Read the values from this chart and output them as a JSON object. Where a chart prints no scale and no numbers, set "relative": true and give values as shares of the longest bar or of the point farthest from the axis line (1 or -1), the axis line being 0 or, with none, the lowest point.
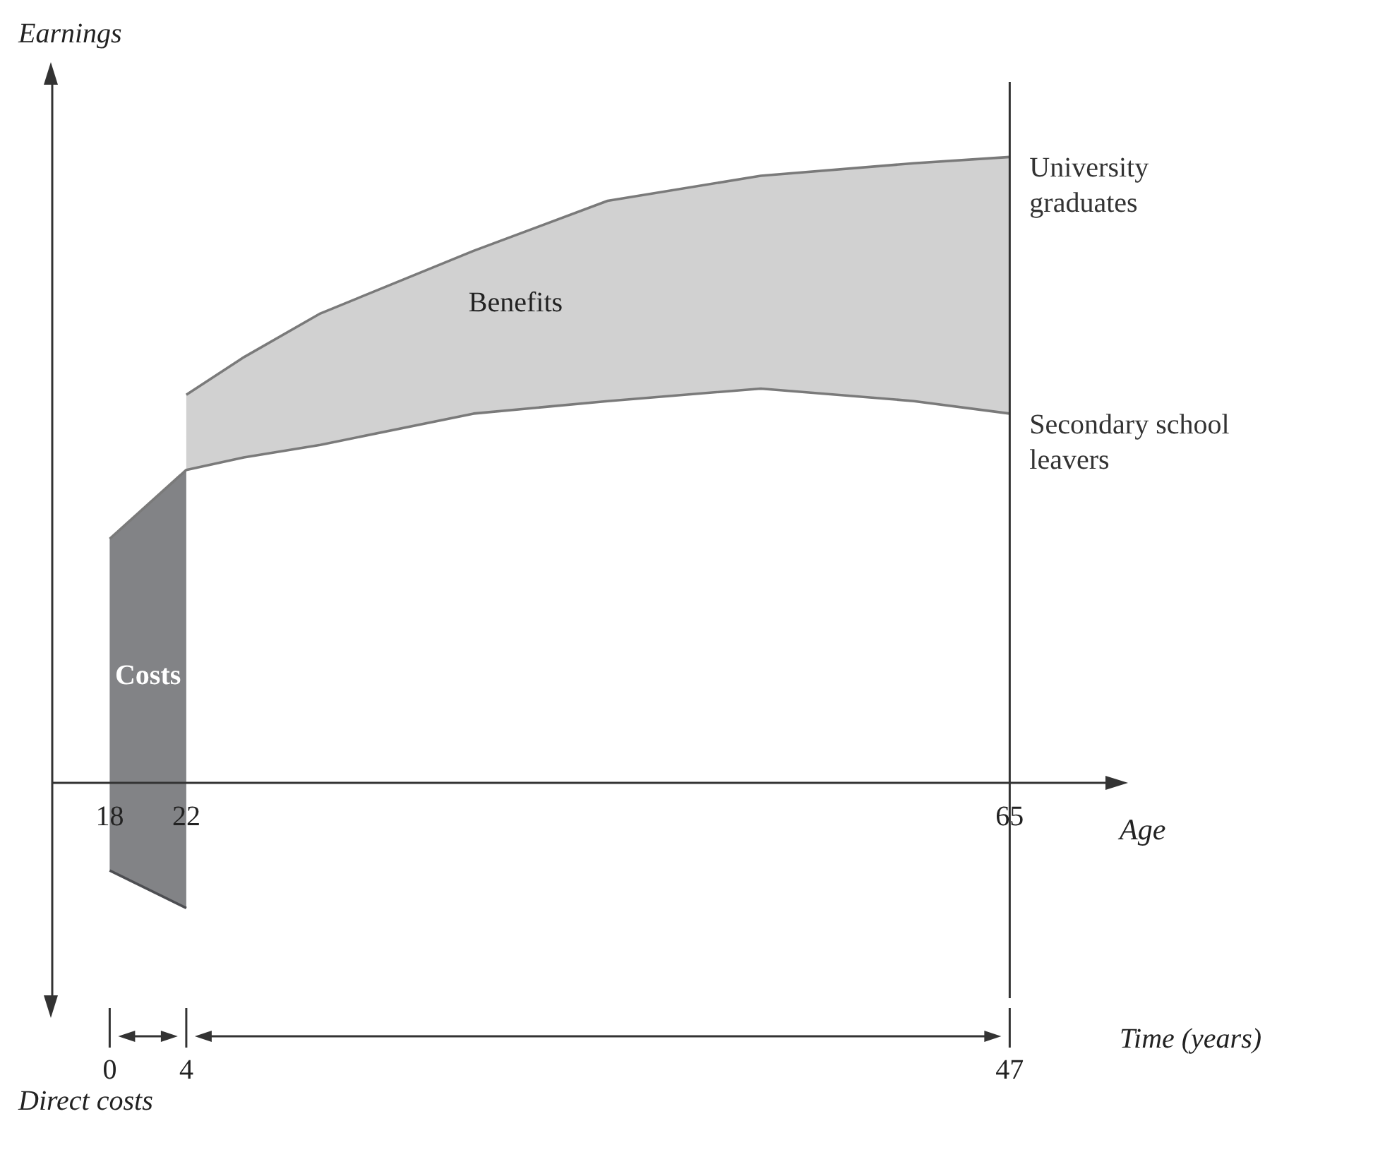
{
  "chart_data": {
    "type": "line",
    "relative": true,
    "ylabel": "Earnings",
    "xlabel": "Age",
    "x2label": "Time (years)",
    "xlim": [
      15,
      70
    ],
    "xticks": [
      18,
      22,
      65
    ],
    "x2lim": [
      -3,
      52
    ],
    "x2ticks": [
      0,
      4,
      47
    ],
    "legend": false,
    "grid": false,
    "marker": "none",
    "ref_lines": [
      {
        "axis": "x",
        "value": 65,
        "color": "#333333"
      }
    ],
    "series": [
      {
        "name": "University graduates",
        "color": "#7a7a7a",
        "x": [
          22,
          25,
          29,
          37,
          44,
          52,
          60,
          65
        ],
        "values": [
          0.62,
          0.68,
          0.75,
          0.85,
          0.93,
          0.97,
          0.99,
          1
        ],
        "lower": [
          0.5,
          0.52,
          0.54,
          0.59,
          0.61,
          0.63,
          0.61,
          0.59
        ],
        "upper": [
          0.62,
          0.68,
          0.75,
          0.85,
          0.93,
          0.97,
          0.99,
          1
        ]
      },
      {
        "name": "Secondary school leavers",
        "color": "#7a7a7a",
        "x": [
          18,
          22,
          25,
          29,
          37,
          44,
          52,
          60,
          65
        ],
        "values": [
          0.39,
          0.5,
          0.52,
          0.54,
          0.59,
          0.61,
          0.63,
          0.61,
          0.59
        ]
      },
      {
        "color": "#4d4e52",
        "x": [
          18,
          22
        ],
        "values": [
          -0.14,
          -0.2
        ],
        "lower": [
          -0.14,
          -0.2
        ],
        "upper": [
          0.39,
          0.5
        ]
      }
    ],
    "annotations": [
      "Benefits",
      "Costs",
      "Direct costs"
    ]
  }
}
